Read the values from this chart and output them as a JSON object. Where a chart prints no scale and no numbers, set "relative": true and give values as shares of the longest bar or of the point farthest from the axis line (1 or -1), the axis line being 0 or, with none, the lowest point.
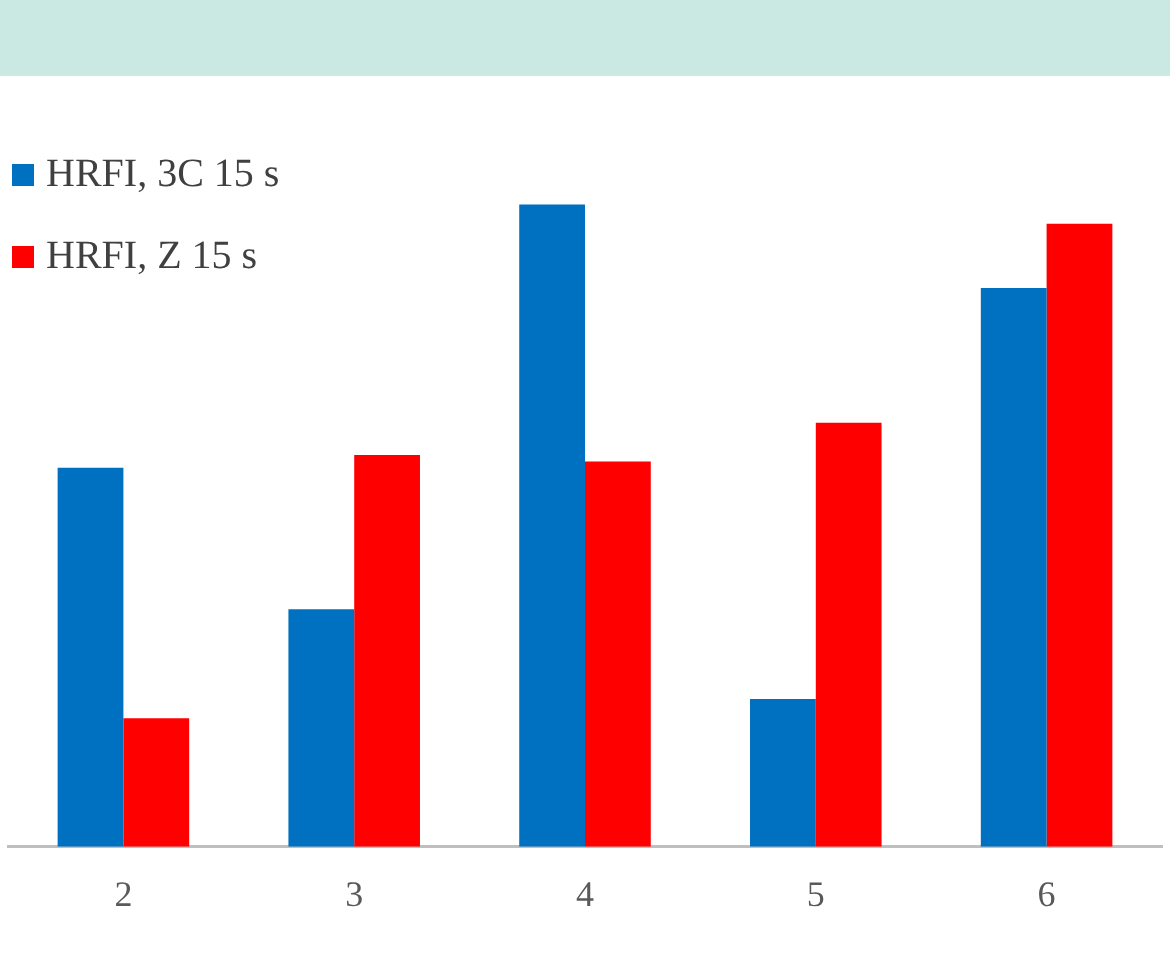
{
  "chart_data": {
    "type": "bar",
    "relative": true,
    "categories": [
      "2",
      "3",
      "4",
      "5",
      "6"
    ],
    "series": [
      {
        "name": "HRFI, 3C 15 s",
        "color": "#0070c0",
        "values": [
          0.59,
          0.37,
          1,
          0.23,
          0.87
        ]
      },
      {
        "name": "HRFI, Z 15 s",
        "color": "#ff0000",
        "values": [
          0.2,
          0.61,
          0.6,
          0.66,
          0.97
        ]
      }
    ],
    "legend": "top left",
    "grid": false
  }
}
